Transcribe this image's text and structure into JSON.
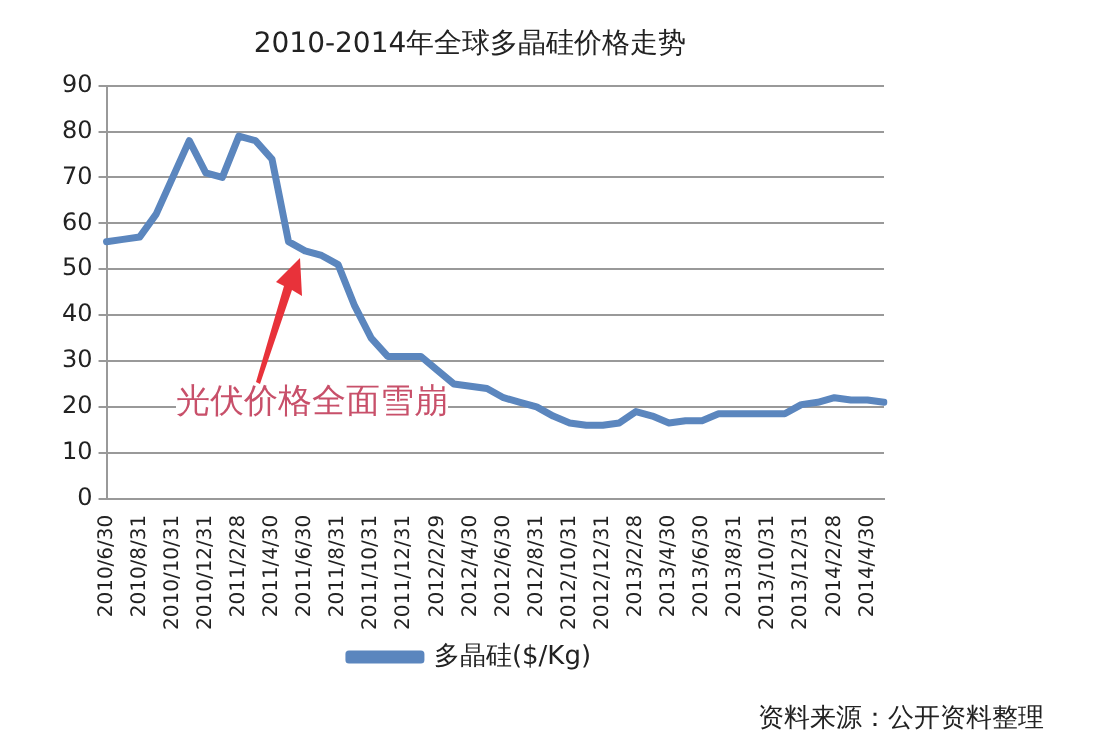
{
  "chart_data": {
    "type": "line",
    "title": "2010-2014年全球多晶硅价格走势",
    "categories": [
      "2010/6/30",
      null,
      "2010/8/31",
      null,
      "2010/10/31",
      null,
      "2010/12/31",
      null,
      "2011/2/28",
      null,
      "2011/4/30",
      null,
      "2011/6/30",
      null,
      "2011/8/31",
      null,
      "2011/10/31",
      null,
      "2011/12/31",
      null,
      "2012/2/29",
      null,
      "2012/4/30",
      null,
      "2012/6/30",
      null,
      "2012/8/31",
      null,
      "2012/10/31",
      null,
      "2012/12/31",
      null,
      "2013/2/28",
      null,
      "2013/4/30",
      null,
      "2013/6/30",
      null,
      "2013/8/31",
      null,
      "2013/10/31",
      null,
      "2013/12/31",
      null,
      "2014/2/28",
      null,
      "2014/4/30",
      null
    ],
    "series": [
      {
        "name": "多晶硅($/Kg)",
        "color": "#5b86be",
        "values": [
          56,
          56.5,
          57,
          62,
          70,
          78,
          71,
          70,
          79,
          78,
          74,
          56,
          54,
          53,
          51,
          42,
          35,
          31,
          31,
          31,
          28,
          25,
          24.5,
          24,
          22,
          21,
          20,
          18,
          16.5,
          16,
          16,
          16.5,
          19,
          18,
          16.5,
          17,
          17,
          18.5,
          18.5,
          18.5,
          18.5,
          18.5,
          20.5,
          21,
          22,
          21.5,
          21.5,
          21
        ]
      }
    ],
    "ylim": [
      0,
      90
    ],
    "yticks": [
      0,
      10,
      20,
      30,
      40,
      50,
      60,
      70,
      80,
      90
    ],
    "grid": "y",
    "legend": "bottom",
    "marker": "none",
    "line_style": "solid",
    "annotations": [
      "光伏价格全面雪崩",
      "资料来源：公开资料整理"
    ]
  }
}
